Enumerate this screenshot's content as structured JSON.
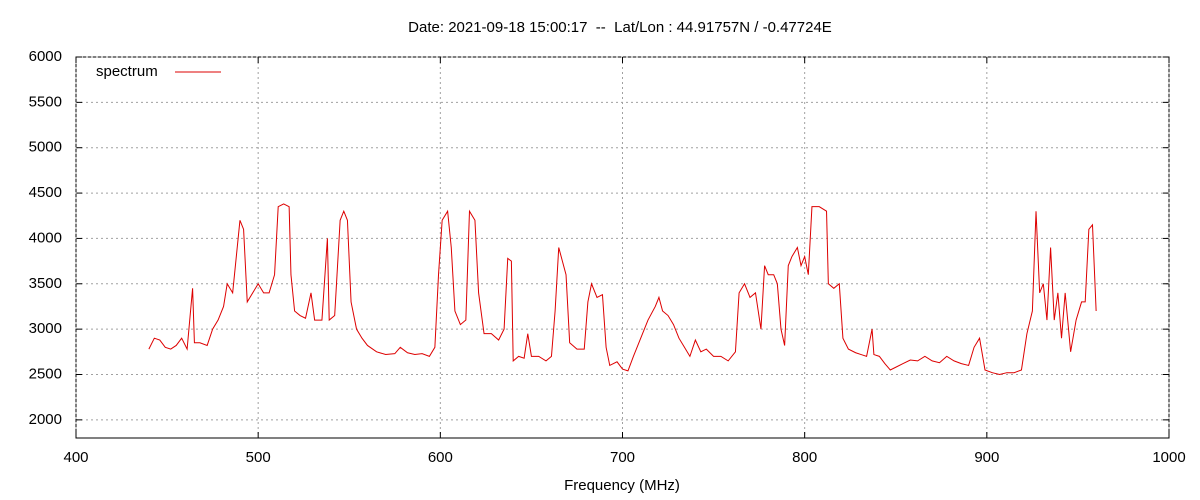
{
  "chart_data": {
    "type": "line",
    "title": "Date: 2021-09-18 15:00:17  --  Lat/Lon : 44.91757N / -0.47724E",
    "xlabel": "Frequency (MHz)",
    "xlim": [
      400,
      1000
    ],
    "xticks": [
      400,
      500,
      600,
      700,
      800,
      900,
      1000
    ],
    "ylim": [
      1800,
      6000
    ],
    "yticks": [
      2000,
      2500,
      3000,
      3500,
      4000,
      4500,
      5000,
      5500,
      6000
    ],
    "grid": true,
    "legend": "upper left",
    "x": [
      440,
      443,
      446,
      449,
      452,
      455,
      458,
      461,
      464,
      465,
      468,
      472,
      475,
      478,
      481,
      483,
      486,
      488,
      490,
      492,
      494,
      497,
      500,
      503,
      506,
      509,
      511,
      514,
      517,
      518,
      520,
      523,
      526,
      529,
      531,
      535,
      538,
      539,
      542,
      545,
      547,
      549,
      551,
      554,
      557,
      560,
      565,
      570,
      575,
      578,
      582,
      586,
      590,
      594,
      597,
      599,
      601,
      604,
      606,
      608,
      611,
      614,
      616,
      619,
      621,
      624,
      628,
      632,
      635,
      637,
      639,
      640,
      643,
      646,
      648,
      650,
      654,
      658,
      661,
      663,
      665,
      667,
      669,
      671,
      675,
      679,
      681,
      683,
      686,
      689,
      691,
      693,
      697,
      700,
      703,
      706,
      710,
      714,
      718,
      720,
      722,
      725,
      728,
      731,
      734,
      737,
      740,
      743,
      746,
      750,
      754,
      758,
      762,
      764,
      767,
      770,
      773,
      776,
      778,
      780,
      783,
      785,
      787,
      789,
      791,
      793,
      796,
      798,
      800,
      802,
      804,
      808,
      812,
      813,
      816,
      819,
      821,
      824,
      828,
      831,
      834,
      837,
      838,
      841,
      844,
      847,
      850,
      854,
      858,
      862,
      866,
      870,
      874,
      878,
      882,
      886,
      890,
      893,
      896,
      899,
      903,
      907,
      911,
      915,
      919,
      922,
      925,
      927,
      929,
      931,
      933,
      935,
      937,
      939,
      941,
      943,
      946,
      949,
      952,
      954,
      956,
      958,
      960
    ],
    "series": [
      {
        "name": "spectrum",
        "color": "#dd0000",
        "values": [
          2780,
          2900,
          2880,
          2800,
          2780,
          2820,
          2900,
          2780,
          3450,
          2850,
          2850,
          2820,
          3000,
          3100,
          3250,
          3500,
          3400,
          3800,
          4200,
          4100,
          3300,
          3400,
          3500,
          3400,
          3400,
          3600,
          4350,
          4380,
          4350,
          3600,
          3200,
          3150,
          3120,
          3400,
          3100,
          3100,
          4000,
          3100,
          3150,
          4200,
          4300,
          4200,
          3300,
          3000,
          2900,
          2820,
          2750,
          2720,
          2730,
          2800,
          2740,
          2720,
          2730,
          2700,
          2800,
          3600,
          4200,
          4300,
          3900,
          3200,
          3050,
          3100,
          4300,
          4200,
          3400,
          2950,
          2950,
          2880,
          3000,
          3780,
          3750,
          2650,
          2700,
          2680,
          2950,
          2700,
          2700,
          2650,
          2700,
          3200,
          3900,
          3750,
          3600,
          2850,
          2780,
          2780,
          3300,
          3500,
          3350,
          3380,
          2800,
          2600,
          2640,
          2560,
          2540,
          2700,
          2900,
          3100,
          3250,
          3350,
          3200,
          3150,
          3050,
          2900,
          2800,
          2700,
          2880,
          2750,
          2780,
          2700,
          2700,
          2650,
          2750,
          3400,
          3500,
          3350,
          3400,
          3000,
          3700,
          3600,
          3600,
          3500,
          3000,
          2820,
          3700,
          3800,
          3900,
          3700,
          3800,
          3600,
          4350,
          4350,
          4300,
          3500,
          3450,
          3500,
          2900,
          2780,
          2740,
          2720,
          2700,
          3000,
          2720,
          2700,
          2620,
          2550,
          2580,
          2620,
          2660,
          2650,
          2700,
          2650,
          2630,
          2700,
          2650,
          2620,
          2600,
          2800,
          2900,
          2550,
          2520,
          2500,
          2520,
          2520,
          2550,
          2950,
          3200,
          4300,
          3400,
          3500,
          3100,
          3900,
          3100,
          3400,
          2900,
          3400,
          2750,
          3100,
          3300,
          3300,
          4100,
          4150,
          3200
        ]
      }
    ]
  }
}
